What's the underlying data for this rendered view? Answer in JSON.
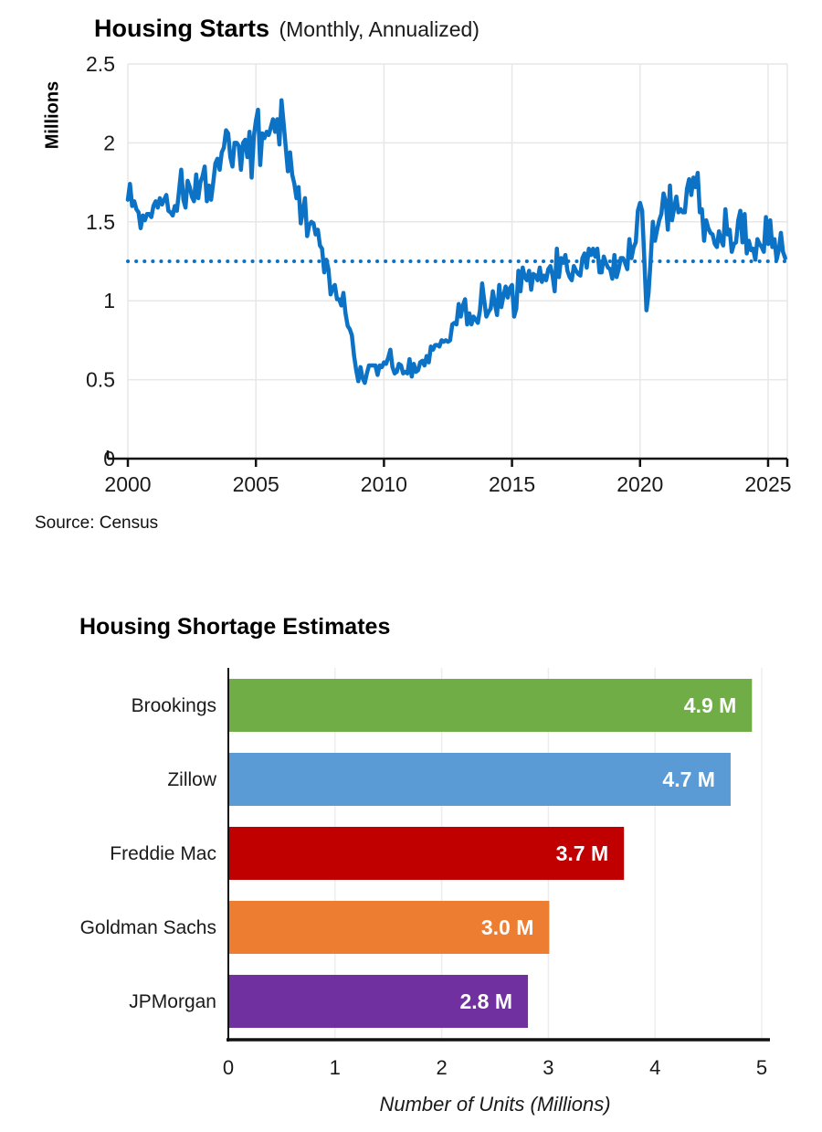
{
  "chart_data": [
    {
      "type": "line",
      "title": "Housing Starts",
      "subtitle": "(Monthly, Annualized)",
      "ylabel": "Millions",
      "source": "Source: Census",
      "xlabel": "",
      "x_ticks": [
        2000,
        2005,
        2010,
        2015,
        2020,
        2025
      ],
      "y_ticks": [
        0,
        0.5,
        1,
        1.5,
        2,
        2.5
      ],
      "xlim": [
        2000,
        2025.75
      ],
      "ylim": [
        0,
        2.5
      ],
      "grid": true,
      "legend": "none",
      "line_color": "#0C72C6",
      "grid_color": "#E7E7E7",
      "axis_color": "#111111",
      "reference_line": {
        "value": 1.25,
        "style": "dotted",
        "color": "#0C72C6"
      },
      "x_start_year": 2000,
      "x_step_months": 1,
      "values": [
        1.64,
        1.74,
        1.6,
        1.63,
        1.58,
        1.56,
        1.46,
        1.54,
        1.51,
        1.55,
        1.55,
        1.53,
        1.6,
        1.63,
        1.59,
        1.65,
        1.61,
        1.64,
        1.67,
        1.57,
        1.56,
        1.54,
        1.6,
        1.57,
        1.7,
        1.83,
        1.64,
        1.59,
        1.76,
        1.72,
        1.66,
        1.63,
        1.8,
        1.65,
        1.75,
        1.79,
        1.85,
        1.63,
        1.73,
        1.64,
        1.75,
        1.87,
        1.9,
        1.83,
        1.94,
        1.97,
        2.08,
        2.06,
        1.91,
        1.85,
        2.0,
        2.0,
        1.98,
        1.83,
        2.0,
        2.02,
        1.91,
        2.07,
        1.78,
        2.04,
        2.14,
        2.21,
        1.86,
        2.06,
        2.03,
        2.07,
        2.05,
        2.1,
        2.15,
        2.07,
        2.15,
        1.99,
        2.27,
        2.12,
        1.97,
        1.82,
        1.94,
        1.8,
        1.74,
        1.65,
        1.72,
        1.49,
        1.57,
        1.65,
        1.41,
        1.48,
        1.5,
        1.49,
        1.42,
        1.45,
        1.35,
        1.33,
        1.18,
        1.26,
        1.2,
        1.04,
        1.08,
        1.1,
        1.01,
        1.01,
        0.97,
        1.05,
        0.92,
        0.84,
        0.82,
        0.78,
        0.65,
        0.56,
        0.49,
        0.58,
        0.51,
        0.48,
        0.54,
        0.59,
        0.59,
        0.59,
        0.59,
        0.53,
        0.59,
        0.58,
        0.61,
        0.6,
        0.64,
        0.69,
        0.58,
        0.54,
        0.55,
        0.6,
        0.59,
        0.54,
        0.55,
        0.54,
        0.63,
        0.52,
        0.6,
        0.55,
        0.56,
        0.61,
        0.62,
        0.59,
        0.65,
        0.61,
        0.71,
        0.69,
        0.72,
        0.72,
        0.71,
        0.75,
        0.74,
        0.75,
        0.74,
        0.75,
        0.85,
        0.86,
        0.85,
        0.98,
        0.9,
        0.97,
        1.01,
        0.85,
        0.92,
        0.85,
        0.9,
        0.88,
        0.86,
        0.94,
        1.11,
        1.0,
        0.9,
        0.93,
        0.95,
        1.06,
        0.98,
        0.91,
        1.1,
        0.96,
        1.03,
        1.09,
        1.02,
        1.08,
        1.1,
        0.9,
        0.95,
        1.19,
        1.06,
        1.21,
        1.15,
        1.13,
        1.19,
        1.07,
        1.17,
        1.16,
        1.13,
        1.21,
        1.12,
        1.16,
        1.13,
        1.2,
        1.22,
        1.16,
        1.06,
        1.33,
        1.15,
        1.27,
        1.24,
        1.29,
        1.19,
        1.15,
        1.13,
        1.22,
        1.19,
        1.17,
        1.16,
        1.27,
        1.3,
        1.21,
        1.33,
        1.29,
        1.33,
        1.28,
        1.33,
        1.18,
        1.18,
        1.28,
        1.24,
        1.21,
        1.2,
        1.14,
        1.29,
        1.15,
        1.2,
        1.27,
        1.27,
        1.24,
        1.2,
        1.39,
        1.27,
        1.34,
        1.37,
        1.57,
        1.62,
        1.57,
        1.27,
        0.94,
        1.05,
        1.27,
        1.5,
        1.38,
        1.45,
        1.51,
        1.55,
        1.68,
        1.63,
        1.45,
        1.73,
        1.51,
        1.59,
        1.66,
        1.56,
        1.58,
        1.56,
        1.56,
        1.71,
        1.77,
        1.67,
        1.78,
        1.72,
        1.81,
        1.56,
        1.58,
        1.38,
        1.51,
        1.46,
        1.43,
        1.42,
        1.36,
        1.34,
        1.44,
        1.38,
        1.35,
        1.58,
        1.42,
        1.45,
        1.31,
        1.36,
        1.37,
        1.51,
        1.57,
        1.37,
        1.55,
        1.3,
        1.38,
        1.32,
        1.33,
        1.26,
        1.39,
        1.36,
        1.34,
        1.31,
        1.53,
        1.36,
        1.51,
        1.34,
        1.39,
        1.26,
        1.32,
        1.43,
        1.31,
        1.27
      ]
    },
    {
      "type": "bar",
      "orientation": "horizontal",
      "title": "Housing Shortage Estimates",
      "xlabel": "Number of Units (Millions)",
      "categories": [
        "Brookings",
        "Zillow",
        "Freddie Mac",
        "Goldman Sachs",
        "JPMorgan"
      ],
      "values": [
        4.9,
        4.7,
        3.7,
        3.0,
        2.8
      ],
      "bar_labels": [
        "4.9 M",
        "4.7 M",
        "3.7 M",
        "3.0 M",
        "2.8 M"
      ],
      "colors": [
        "#70AD47",
        "#5B9BD5",
        "#C00000",
        "#ED7D31",
        "#7030A0"
      ],
      "x_ticks": [
        0,
        1,
        2,
        3,
        4,
        5
      ],
      "xlim": [
        0,
        5
      ],
      "grid": true,
      "legend": "none",
      "grid_color": "#EDEDED",
      "axis_color": "#111111",
      "bar_label_color": "#FFFFFF",
      "label_color": "#1a1a1a"
    }
  ]
}
